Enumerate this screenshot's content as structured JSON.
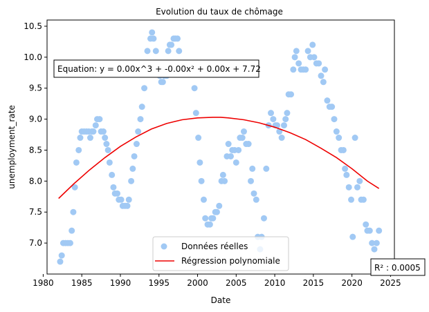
{
  "chart_data": {
    "type": "scatter",
    "title": "Evolution du taux de chômage",
    "xlabel": "Date",
    "ylabel": "unemployment_rate",
    "xlim": [
      1980.5,
      2025.5
    ],
    "ylim": [
      6.5,
      10.6
    ],
    "x_ticks": [
      1980,
      1985,
      1990,
      1995,
      2000,
      2005,
      2010,
      2015,
      2020,
      2025
    ],
    "y_ticks": [
      7.0,
      7.5,
      8.0,
      8.5,
      9.0,
      9.5,
      10.0,
      10.5
    ],
    "grid": false,
    "legend_position": "bottom-center",
    "equation_text": "Equation: y = 0.00x^3 + -0.00x² + 0.00x + 7.72",
    "r2_text": "R² : 0.0005",
    "colors": {
      "scatter": "#a1c9f4",
      "fit": "#ee0000"
    },
    "series": [
      {
        "name": "Données réelles",
        "kind": "scatter",
        "points": [
          [
            1982.2,
            6.7
          ],
          [
            1982.4,
            6.8
          ],
          [
            1982.6,
            7.0
          ],
          [
            1982.9,
            7.0
          ],
          [
            1983.2,
            7.0
          ],
          [
            1983.5,
            7.0
          ],
          [
            1983.7,
            7.2
          ],
          [
            1983.9,
            7.5
          ],
          [
            1984.1,
            7.9
          ],
          [
            1984.3,
            8.3
          ],
          [
            1984.6,
            8.5
          ],
          [
            1984.8,
            8.7
          ],
          [
            1985.0,
            8.8
          ],
          [
            1985.3,
            8.8
          ],
          [
            1985.6,
            8.8
          ],
          [
            1985.9,
            8.8
          ],
          [
            1986.1,
            8.7
          ],
          [
            1986.3,
            8.8
          ],
          [
            1986.5,
            8.8
          ],
          [
            1986.8,
            8.9
          ],
          [
            1987.0,
            9.0
          ],
          [
            1987.3,
            9.0
          ],
          [
            1987.5,
            8.8
          ],
          [
            1987.8,
            8.8
          ],
          [
            1988.0,
            8.7
          ],
          [
            1988.2,
            8.6
          ],
          [
            1988.4,
            8.5
          ],
          [
            1988.6,
            8.3
          ],
          [
            1988.9,
            8.1
          ],
          [
            1989.1,
            7.9
          ],
          [
            1989.3,
            7.8
          ],
          [
            1989.6,
            7.8
          ],
          [
            1989.8,
            7.7
          ],
          [
            1990.1,
            7.7
          ],
          [
            1990.3,
            7.6
          ],
          [
            1990.6,
            7.6
          ],
          [
            1990.9,
            7.6
          ],
          [
            1991.1,
            7.7
          ],
          [
            1991.4,
            8.0
          ],
          [
            1991.6,
            8.2
          ],
          [
            1991.8,
            8.4
          ],
          [
            1992.1,
            8.6
          ],
          [
            1992.3,
            8.8
          ],
          [
            1992.6,
            9.0
          ],
          [
            1992.8,
            9.2
          ],
          [
            1993.1,
            9.5
          ],
          [
            1993.5,
            10.1
          ],
          [
            1993.9,
            10.3
          ],
          [
            1994.1,
            10.4
          ],
          [
            1994.3,
            10.3
          ],
          [
            1994.6,
            10.1
          ],
          [
            1994.9,
            9.8
          ],
          [
            1995.1,
            9.7
          ],
          [
            1995.3,
            9.6
          ],
          [
            1995.5,
            9.6
          ],
          [
            1995.7,
            9.7
          ],
          [
            1996.0,
            9.7
          ],
          [
            1996.2,
            10.1
          ],
          [
            1996.4,
            10.2
          ],
          [
            1996.6,
            10.2
          ],
          [
            1996.9,
            10.3
          ],
          [
            1997.1,
            10.3
          ],
          [
            1997.4,
            10.3
          ],
          [
            1997.6,
            10.1
          ],
          [
            1997.8,
            9.9
          ],
          [
            1998.1,
            9.8
          ],
          [
            1998.3,
            9.8
          ],
          [
            1998.6,
            9.8
          ],
          [
            1998.8,
            9.8
          ],
          [
            1999.1,
            9.8
          ],
          [
            1999.3,
            9.8
          ],
          [
            1999.6,
            9.5
          ],
          [
            1999.8,
            9.1
          ],
          [
            2000.1,
            8.7
          ],
          [
            2000.3,
            8.3
          ],
          [
            2000.5,
            8.0
          ],
          [
            2000.8,
            7.7
          ],
          [
            2001.0,
            7.4
          ],
          [
            2001.3,
            7.3
          ],
          [
            2001.6,
            7.3
          ],
          [
            2001.8,
            7.4
          ],
          [
            2002.0,
            7.4
          ],
          [
            2002.3,
            7.5
          ],
          [
            2002.5,
            7.5
          ],
          [
            2002.8,
            7.6
          ],
          [
            2003.1,
            8.0
          ],
          [
            2003.3,
            8.1
          ],
          [
            2003.5,
            8.0
          ],
          [
            2003.8,
            8.4
          ],
          [
            2004.0,
            8.6
          ],
          [
            2004.3,
            8.4
          ],
          [
            2004.5,
            8.5
          ],
          [
            2004.8,
            8.5
          ],
          [
            2005.0,
            8.3
          ],
          [
            2005.3,
            8.5
          ],
          [
            2005.5,
            8.7
          ],
          [
            2005.8,
            8.7
          ],
          [
            2006.0,
            8.8
          ],
          [
            2006.3,
            8.6
          ],
          [
            2006.6,
            8.6
          ],
          [
            2006.9,
            8.0
          ],
          [
            2007.1,
            8.2
          ],
          [
            2007.3,
            7.8
          ],
          [
            2007.6,
            7.7
          ],
          [
            2007.8,
            7.1
          ],
          [
            2008.1,
            6.9
          ],
          [
            2008.3,
            7.1
          ],
          [
            2008.6,
            7.4
          ],
          [
            2008.9,
            8.2
          ],
          [
            2009.2,
            8.9
          ],
          [
            2009.5,
            9.1
          ],
          [
            2009.8,
            9.0
          ],
          [
            2010.1,
            8.9
          ],
          [
            2010.3,
            8.9
          ],
          [
            2010.6,
            8.8
          ],
          [
            2010.9,
            8.7
          ],
          [
            2011.2,
            8.9
          ],
          [
            2011.4,
            9.0
          ],
          [
            2011.6,
            9.1
          ],
          [
            2011.8,
            9.4
          ],
          [
            2012.1,
            9.4
          ],
          [
            2012.4,
            9.8
          ],
          [
            2012.6,
            10.0
          ],
          [
            2012.8,
            10.1
          ],
          [
            2013.1,
            9.9
          ],
          [
            2013.4,
            9.8
          ],
          [
            2013.7,
            9.8
          ],
          [
            2014.0,
            9.8
          ],
          [
            2014.3,
            10.1
          ],
          [
            2014.6,
            10.0
          ],
          [
            2014.9,
            10.2
          ],
          [
            2015.1,
            10.0
          ],
          [
            2015.4,
            9.9
          ],
          [
            2015.7,
            9.9
          ],
          [
            2016.0,
            9.7
          ],
          [
            2016.3,
            9.6
          ],
          [
            2016.5,
            9.8
          ],
          [
            2016.8,
            9.3
          ],
          [
            2017.1,
            9.2
          ],
          [
            2017.4,
            9.2
          ],
          [
            2017.7,
            9.0
          ],
          [
            2018.0,
            8.8
          ],
          [
            2018.3,
            8.7
          ],
          [
            2018.6,
            8.5
          ],
          [
            2018.9,
            8.5
          ],
          [
            2019.1,
            8.2
          ],
          [
            2019.3,
            8.1
          ],
          [
            2019.6,
            7.9
          ],
          [
            2019.9,
            7.7
          ],
          [
            2020.1,
            7.1
          ],
          [
            2020.4,
            8.7
          ],
          [
            2020.7,
            7.9
          ],
          [
            2021.0,
            8.0
          ],
          [
            2021.2,
            7.7
          ],
          [
            2021.5,
            7.7
          ],
          [
            2021.8,
            7.3
          ],
          [
            2022.0,
            7.2
          ],
          [
            2022.3,
            7.2
          ],
          [
            2022.6,
            7.0
          ],
          [
            2022.9,
            6.9
          ],
          [
            2023.2,
            7.0
          ],
          [
            2023.5,
            7.2
          ]
        ]
      },
      {
        "name": "Régression polynomiale",
        "kind": "line",
        "points": [
          [
            1982.0,
            7.72
          ],
          [
            1984.0,
            7.96
          ],
          [
            1986.0,
            8.18
          ],
          [
            1988.0,
            8.38
          ],
          [
            1990.0,
            8.56
          ],
          [
            1992.0,
            8.71
          ],
          [
            1994.0,
            8.84
          ],
          [
            1996.0,
            8.93
          ],
          [
            1998.0,
            8.99
          ],
          [
            2000.0,
            9.02
          ],
          [
            2002.0,
            9.03
          ],
          [
            2003.0,
            9.03
          ],
          [
            2004.0,
            9.02
          ],
          [
            2006.0,
            8.99
          ],
          [
            2008.0,
            8.94
          ],
          [
            2010.0,
            8.87
          ],
          [
            2012.0,
            8.78
          ],
          [
            2014.0,
            8.67
          ],
          [
            2016.0,
            8.53
          ],
          [
            2018.0,
            8.38
          ],
          [
            2020.0,
            8.2
          ],
          [
            2022.0,
            8.0
          ],
          [
            2023.5,
            7.88
          ]
        ]
      }
    ]
  }
}
